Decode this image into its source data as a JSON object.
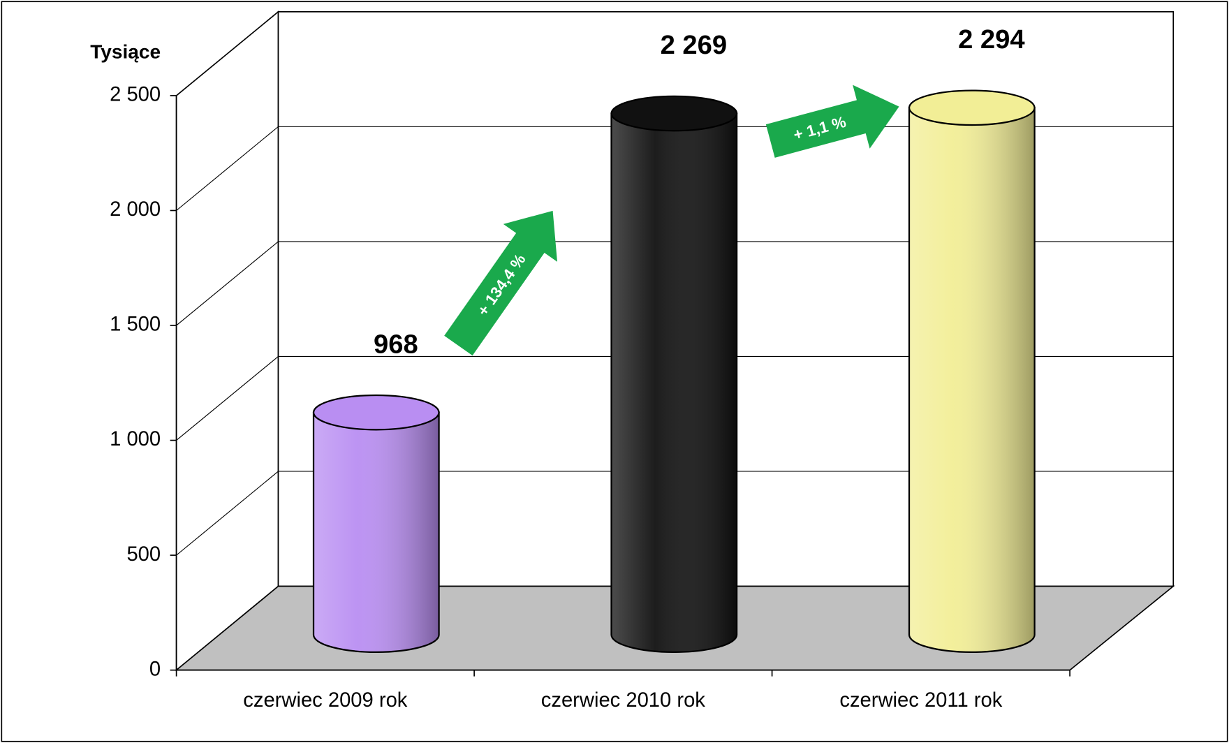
{
  "chart_data": {
    "type": "cylinder",
    "y_axis_label": "Tysiące",
    "categories": [
      "czerwiec 2009 rok",
      "czerwiec 2010 rok",
      "czerwiec 2011 rok"
    ],
    "values": [
      968,
      2269,
      2294
    ],
    "value_labels": [
      "968",
      "2 269",
      "2 294"
    ],
    "colors": [
      "#b98ef2",
      "#111111",
      "#f2ee96"
    ],
    "ylim": [
      0,
      2500
    ],
    "yticks": [
      0,
      500,
      {
        "value": 1000,
        "label": "1 000"
      },
      {
        "value": 1500,
        "label": "1 500"
      },
      {
        "value": 2000,
        "label": "2 000"
      },
      {
        "value": 2500,
        "label": "2 500"
      }
    ],
    "grid": true,
    "annotations": [
      "+ 134,4 %",
      "+ 1,1 %"
    ]
  }
}
